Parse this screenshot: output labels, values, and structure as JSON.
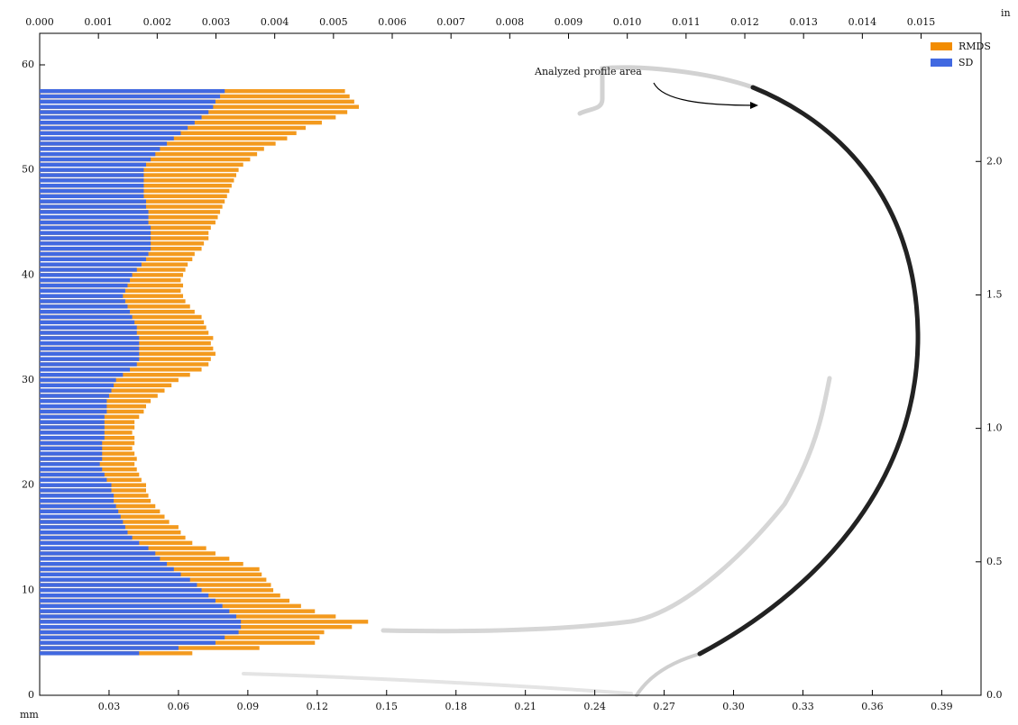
{
  "chart_data": {
    "type": "barh",
    "annotation": "Analyzed profile area",
    "xlabel": "mm",
    "x2label": "in",
    "xlim": [
      0,
      0.407
    ],
    "xticks": [
      0.03,
      0.06,
      0.09,
      0.12,
      0.15,
      0.18,
      0.21,
      0.24,
      0.27,
      {
        "value": 0.3,
        "label": "0.30"
      },
      0.33,
      0.36,
      0.39
    ],
    "x2lim": [
      0,
      0.01602
    ],
    "x2ticks": [
      {
        "value": 0,
        "label": "0.000"
      },
      0.001,
      0.002,
      0.003,
      0.004,
      0.005,
      0.006,
      0.007,
      0.008,
      0.009,
      {
        "value": 0.01,
        "label": "0.010"
      },
      0.011,
      0.012,
      0.013,
      0.014,
      0.015
    ],
    "ylim": [
      0,
      63
    ],
    "yticks": [
      0,
      10,
      20,
      30,
      40,
      50,
      60
    ],
    "y2lim": [
      0,
      2.48
    ],
    "y2ticks": [
      {
        "value": 0,
        "label": "0.0"
      },
      0.5,
      {
        "value": 1,
        "label": "1.0"
      },
      1.5,
      {
        "value": 2,
        "label": "2.0"
      }
    ],
    "legend": "upper right",
    "y": [
      4.0,
      4.5,
      5.0,
      5.5,
      6.0,
      6.5,
      7.0,
      7.5,
      8.0,
      8.5,
      9.0,
      9.5,
      10.0,
      10.5,
      11.0,
      11.5,
      12.0,
      12.5,
      13.0,
      13.5,
      14.0,
      14.5,
      15.0,
      15.5,
      16.0,
      16.5,
      17.0,
      17.5,
      18.0,
      18.5,
      19.0,
      19.5,
      20.0,
      20.5,
      21.0,
      21.5,
      22.0,
      22.5,
      23.0,
      23.5,
      24.0,
      24.5,
      25.0,
      25.5,
      26.0,
      26.5,
      27.0,
      27.5,
      28.0,
      28.5,
      29.0,
      29.5,
      30.0,
      30.5,
      31.0,
      31.5,
      32.0,
      32.5,
      33.0,
      33.5,
      34.0,
      34.5,
      35.0,
      35.5,
      36.0,
      36.5,
      37.0,
      37.5,
      38.0,
      38.5,
      39.0,
      39.5,
      40.0,
      40.5,
      41.0,
      41.5,
      42.0,
      42.5,
      43.0,
      43.5,
      44.0,
      44.5,
      45.0,
      45.5,
      46.0,
      46.5,
      47.0,
      47.5,
      48.0,
      48.5,
      49.0,
      49.5,
      50.0,
      50.5,
      51.0,
      51.5,
      52.0,
      52.5,
      53.0,
      53.5,
      54.0,
      54.5,
      55.0,
      55.5,
      56.0,
      56.5,
      57.0,
      57.5
    ],
    "series": [
      {
        "name": "RMDS",
        "color": "#f39a1e",
        "legend_color": "#f28c00",
        "values": [
          0.066,
          0.095,
          0.119,
          0.121,
          0.123,
          0.135,
          0.142,
          0.128,
          0.119,
          0.113,
          0.108,
          0.104,
          0.101,
          0.1,
          0.098,
          0.096,
          0.095,
          0.088,
          0.082,
          0.076,
          0.072,
          0.066,
          0.063,
          0.061,
          0.06,
          0.056,
          0.054,
          0.052,
          0.05,
          0.048,
          0.047,
          0.046,
          0.046,
          0.044,
          0.043,
          0.042,
          0.041,
          0.042,
          0.041,
          0.04,
          0.041,
          0.041,
          0.04,
          0.041,
          0.041,
          0.043,
          0.045,
          0.046,
          0.048,
          0.051,
          0.054,
          0.057,
          0.06,
          0.065,
          0.07,
          0.073,
          0.074,
          0.076,
          0.075,
          0.074,
          0.075,
          0.073,
          0.072,
          0.071,
          0.07,
          0.067,
          0.065,
          0.063,
          0.062,
          0.061,
          0.062,
          0.061,
          0.062,
          0.063,
          0.064,
          0.066,
          0.067,
          0.07,
          0.071,
          0.073,
          0.073,
          0.074,
          0.076,
          0.077,
          0.078,
          0.079,
          0.08,
          0.081,
          0.082,
          0.083,
          0.084,
          0.085,
          0.086,
          0.088,
          0.091,
          0.094,
          0.097,
          0.102,
          0.107,
          0.111,
          0.115,
          0.122,
          0.128,
          0.133,
          0.138,
          0.136,
          0.134,
          0.132
        ]
      },
      {
        "name": "SD",
        "color": "#4169e1",
        "legend_color": "#4169e1",
        "values": [
          0.043,
          0.06,
          0.076,
          0.08,
          0.086,
          0.087,
          0.087,
          0.085,
          0.082,
          0.079,
          0.076,
          0.073,
          0.07,
          0.068,
          0.065,
          0.061,
          0.058,
          0.055,
          0.052,
          0.05,
          0.047,
          0.043,
          0.04,
          0.038,
          0.037,
          0.036,
          0.035,
          0.034,
          0.033,
          0.032,
          0.032,
          0.031,
          0.031,
          0.029,
          0.028,
          0.027,
          0.026,
          0.027,
          0.027,
          0.027,
          0.027,
          0.028,
          0.028,
          0.028,
          0.028,
          0.028,
          0.029,
          0.029,
          0.029,
          0.03,
          0.031,
          0.032,
          0.033,
          0.036,
          0.039,
          0.042,
          0.043,
          0.043,
          0.043,
          0.043,
          0.043,
          0.042,
          0.042,
          0.041,
          0.04,
          0.039,
          0.038,
          0.037,
          0.036,
          0.037,
          0.038,
          0.039,
          0.04,
          0.042,
          0.044,
          0.046,
          0.047,
          0.048,
          0.048,
          0.048,
          0.048,
          0.048,
          0.047,
          0.047,
          0.047,
          0.046,
          0.046,
          0.045,
          0.045,
          0.045,
          0.045,
          0.045,
          0.045,
          0.046,
          0.048,
          0.05,
          0.052,
          0.055,
          0.058,
          0.061,
          0.064,
          0.067,
          0.07,
          0.073,
          0.075,
          0.076,
          0.078,
          0.08
        ]
      }
    ]
  }
}
